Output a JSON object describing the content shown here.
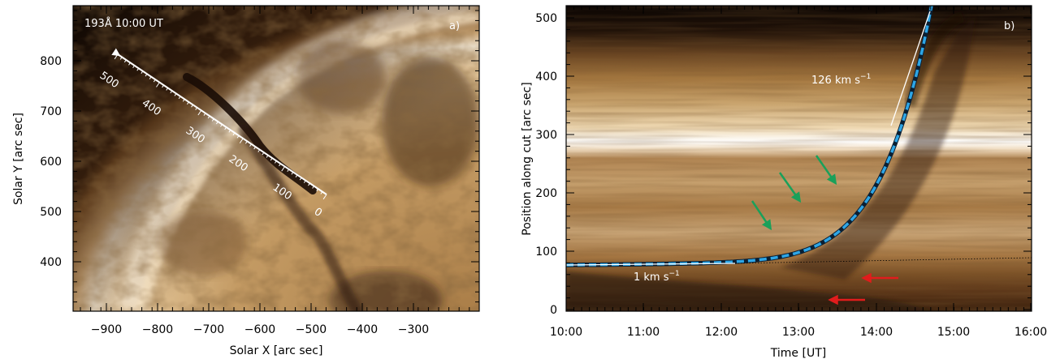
{
  "panel_a": {
    "header": "193Å 10:00 UT",
    "panel_label": "a)",
    "xlabel": "Solar X [arc sec]",
    "ylabel": "Solar Y [arc sec]",
    "xticks": [
      "−900",
      "−800",
      "−700",
      "−600",
      "−500",
      "−400",
      "−300"
    ],
    "yticks": [
      "800",
      "700",
      "600",
      "500",
      "400"
    ],
    "cut_scale": [
      "500",
      "400",
      "300",
      "200",
      "100",
      "0"
    ]
  },
  "panel_b": {
    "panel_label": "b)",
    "xlabel": "Time [UT]",
    "ylabel": "Position along cut [arc sec]",
    "xticks": [
      "10:00",
      "11:00",
      "12:00",
      "13:00",
      "14:00",
      "15:00",
      "16:00"
    ],
    "yticks": [
      "500",
      "400",
      "300",
      "200",
      "100",
      "0"
    ],
    "slow_speed": "1 km s",
    "fast_speed": "126 km s",
    "speed_exponent": "−1"
  },
  "colors": {
    "fit_curve": "#2ea6e6",
    "arrow_green": "#1aa05a",
    "arrow_red": "#e11c1c",
    "bright": "#fbe9cc",
    "dark": "#1a0c05"
  }
}
